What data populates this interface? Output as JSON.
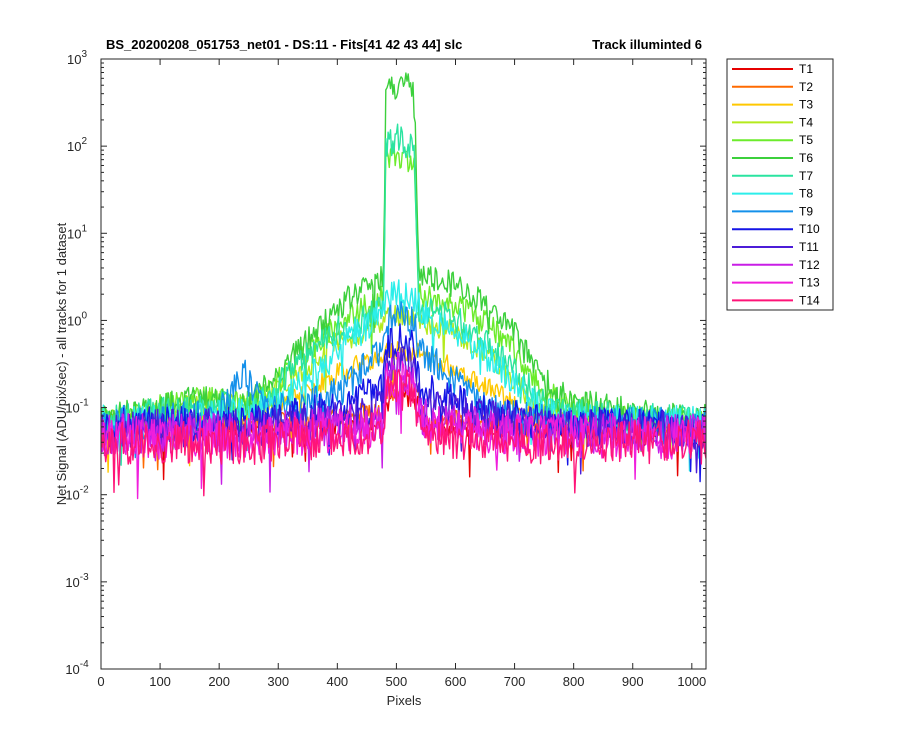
{
  "chart_data": {
    "type": "line",
    "title": "BS_20200208_051753_net01 - DS:11 - Fits[41   42   43   44]   slc",
    "title_right": "Track illuminted 6",
    "xlabel": "Pixels",
    "ylabel": "Net Signal (ADU/pix/sec) - all tracks for 1 dataset",
    "xlim": [
      0,
      1024
    ],
    "ylim": [
      0.0001,
      1000
    ],
    "yscale": "log",
    "grid": false,
    "legend_position": "outside-right",
    "x_ticks": [
      "0",
      "100",
      "200",
      "300",
      "400",
      "500",
      "600",
      "700",
      "800",
      "900",
      "1000"
    ],
    "y_ticks": [
      {
        "base": "10",
        "exp": "-4"
      },
      {
        "base": "10",
        "exp": "-3"
      },
      {
        "base": "10",
        "exp": "-2"
      },
      {
        "base": "10",
        "exp": "-1"
      },
      {
        "base": "10",
        "exp": "0"
      },
      {
        "base": "10",
        "exp": "1"
      },
      {
        "base": "10",
        "exp": "2"
      },
      {
        "base": "10",
        "exp": "3"
      }
    ],
    "x_sample": [
      0,
      50,
      100,
      150,
      200,
      230,
      242,
      255,
      300,
      350,
      400,
      450,
      478,
      482,
      490,
      500,
      515,
      530,
      538,
      542,
      550,
      600,
      650,
      700,
      750,
      800,
      850,
      900,
      950,
      1000,
      1024
    ],
    "series": [
      {
        "name": "T1",
        "color": "#e60000",
        "values": [
          0.055,
          0.055,
          0.055,
          0.055,
          0.055,
          0.055,
          0.055,
          0.055,
          0.055,
          0.058,
          0.06,
          0.065,
          0.075,
          0.11,
          0.12,
          0.13,
          0.13,
          0.12,
          0.11,
          0.07,
          0.06,
          0.06,
          0.058,
          0.055,
          0.055,
          0.055,
          0.055,
          0.055,
          0.055,
          0.055,
          0.055
        ]
      },
      {
        "name": "T2",
        "color": "#ff6a00",
        "values": [
          0.06,
          0.06,
          0.06,
          0.062,
          0.065,
          0.065,
          0.065,
          0.068,
          0.072,
          0.075,
          0.08,
          0.09,
          0.1,
          0.14,
          0.15,
          0.16,
          0.16,
          0.15,
          0.14,
          0.09,
          0.08,
          0.072,
          0.068,
          0.062,
          0.06,
          0.06,
          0.06,
          0.06,
          0.06,
          0.06,
          0.06
        ]
      },
      {
        "name": "T3",
        "color": "#ffc800",
        "values": [
          0.065,
          0.068,
          0.07,
          0.075,
          0.08,
          0.08,
          0.08,
          0.085,
          0.1,
          0.15,
          0.25,
          0.33,
          0.38,
          0.42,
          0.44,
          0.45,
          0.45,
          0.44,
          0.42,
          0.4,
          0.38,
          0.28,
          0.18,
          0.11,
          0.08,
          0.07,
          0.068,
          0.065,
          0.065,
          0.065,
          0.065
        ]
      },
      {
        "name": "T4",
        "color": "#b4ea1c",
        "values": [
          0.07,
          0.075,
          0.09,
          0.1,
          0.12,
          0.1,
          0.1,
          0.1,
          0.16,
          0.3,
          0.55,
          0.8,
          0.95,
          1.0,
          1.05,
          1.1,
          1.1,
          1.05,
          1.0,
          0.98,
          0.95,
          0.75,
          0.45,
          0.2,
          0.09,
          0.08,
          0.075,
          0.07,
          0.07,
          0.07,
          0.07
        ]
      },
      {
        "name": "T5",
        "color": "#6cec2c",
        "values": [
          0.075,
          0.08,
          0.1,
          0.12,
          0.13,
          0.11,
          0.11,
          0.11,
          0.2,
          0.45,
          0.9,
          1.5,
          1.9,
          65,
          75,
          85,
          70,
          60,
          1.9,
          1.85,
          1.8,
          1.5,
          1.0,
          0.45,
          0.15,
          0.1,
          0.08,
          0.075,
          0.075,
          0.075,
          0.075
        ]
      },
      {
        "name": "T6",
        "color": "#3cd03c",
        "values": [
          0.08,
          0.085,
          0.1,
          0.12,
          0.12,
          0.11,
          0.11,
          0.12,
          0.25,
          0.6,
          1.4,
          2.5,
          3.2,
          480,
          500,
          500,
          500,
          490,
          3.2,
          3.1,
          3.0,
          2.5,
          1.6,
          0.7,
          0.2,
          0.12,
          0.1,
          0.09,
          0.08,
          0.08,
          0.08
        ]
      },
      {
        "name": "T7",
        "color": "#2ae4a0",
        "values": [
          0.075,
          0.08,
          0.09,
          0.1,
          0.11,
          0.1,
          0.1,
          0.1,
          0.18,
          0.4,
          0.75,
          1.1,
          1.4,
          90,
          110,
          130,
          110,
          90,
          1.4,
          1.35,
          1.3,
          1.0,
          0.6,
          0.25,
          0.11,
          0.09,
          0.08,
          0.075,
          0.075,
          0.075,
          0.075
        ]
      },
      {
        "name": "T8",
        "color": "#2ceeea",
        "values": [
          0.07,
          0.07,
          0.07,
          0.075,
          0.08,
          0.09,
          0.09,
          0.09,
          0.12,
          0.2,
          0.45,
          0.9,
          1.3,
          1.6,
          1.8,
          2.0,
          1.9,
          1.6,
          1.4,
          1.3,
          1.2,
          0.7,
          0.4,
          0.2,
          0.09,
          0.075,
          0.07,
          0.07,
          0.07,
          0.07,
          0.07
        ]
      },
      {
        "name": "T9",
        "color": "#1490ea",
        "values": [
          0.065,
          0.068,
          0.07,
          0.075,
          0.08,
          0.2,
          0.3,
          0.15,
          0.1,
          0.1,
          0.15,
          0.3,
          0.5,
          0.9,
          1.05,
          1.1,
          1.05,
          0.9,
          0.5,
          0.45,
          0.4,
          0.2,
          0.1,
          0.08,
          0.07,
          0.068,
          0.065,
          0.065,
          0.065,
          0.065,
          0.065
        ]
      },
      {
        "name": "T10",
        "color": "#1414e6",
        "values": [
          0.06,
          0.062,
          0.065,
          0.065,
          0.068,
          0.07,
          0.07,
          0.07,
          0.075,
          0.085,
          0.1,
          0.14,
          0.2,
          0.45,
          0.55,
          0.6,
          0.55,
          0.45,
          0.2,
          0.18,
          0.16,
          0.12,
          0.09,
          0.075,
          0.068,
          0.065,
          0.062,
          0.06,
          0.06,
          0.06,
          0.06
        ]
      },
      {
        "name": "T11",
        "color": "#4c1cd8",
        "values": [
          0.055,
          0.056,
          0.058,
          0.058,
          0.06,
          0.06,
          0.06,
          0.06,
          0.062,
          0.068,
          0.075,
          0.085,
          0.1,
          0.28,
          0.31,
          0.34,
          0.32,
          0.28,
          0.12,
          0.11,
          0.1,
          0.085,
          0.075,
          0.065,
          0.06,
          0.058,
          0.056,
          0.055,
          0.055,
          0.055,
          0.055
        ]
      },
      {
        "name": "T12",
        "color": "#c81ee6",
        "values": [
          0.05,
          0.05,
          0.05,
          0.052,
          0.052,
          0.052,
          0.052,
          0.052,
          0.055,
          0.058,
          0.062,
          0.068,
          0.075,
          0.22,
          0.24,
          0.26,
          0.25,
          0.22,
          0.09,
          0.08,
          0.075,
          0.065,
          0.06,
          0.056,
          0.053,
          0.052,
          0.05,
          0.05,
          0.05,
          0.05,
          0.05
        ]
      },
      {
        "name": "T13",
        "color": "#f01edc",
        "values": [
          0.045,
          0.045,
          0.045,
          0.046,
          0.046,
          0.046,
          0.046,
          0.046,
          0.048,
          0.05,
          0.054,
          0.058,
          0.065,
          0.18,
          0.2,
          0.21,
          0.2,
          0.18,
          0.075,
          0.07,
          0.065,
          0.058,
          0.052,
          0.05,
          0.047,
          0.046,
          0.045,
          0.045,
          0.045,
          0.045,
          0.045
        ]
      },
      {
        "name": "T14",
        "color": "#ff1478",
        "values": [
          0.04,
          0.04,
          0.04,
          0.04,
          0.04,
          0.04,
          0.04,
          0.04,
          0.042,
          0.044,
          0.046,
          0.05,
          0.055,
          0.14,
          0.16,
          0.17,
          0.16,
          0.14,
          0.06,
          0.055,
          0.05,
          0.046,
          0.044,
          0.042,
          0.04,
          0.04,
          0.04,
          0.04,
          0.04,
          0.04,
          0.04
        ]
      }
    ]
  }
}
